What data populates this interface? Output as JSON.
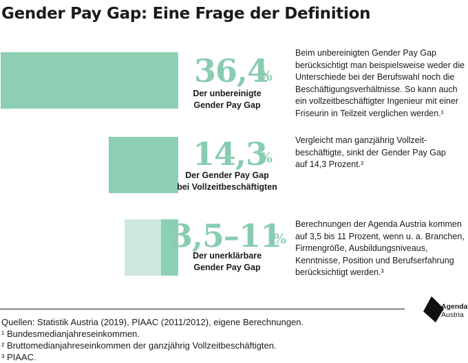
{
  "title": "Gender Pay Gap: Eine Frage der Definition",
  "colors": {
    "bar": "#8ccfb2",
    "bar_light": "#cde9dd",
    "figure": "#88cdb0",
    "text": "#1a1a1a"
  },
  "chart_data": {
    "type": "bar",
    "title": "Gender Pay Gap: Eine Frage der Definition",
    "unit": "%",
    "xlim": [
      0,
      36.4
    ],
    "rows": [
      {
        "value": 36.4,
        "display": "36,4",
        "unit": "%",
        "label_lines": [
          "Der unbereinigte",
          "Gender Pay Gap"
        ],
        "desc_lines": [
          "Beim unbereinigten Gender Pay Gap",
          "berücksichtigt man beispielsweise weder die",
          "Unterschiede bei der Berufswahl noch die",
          "Beschäftigungsverhältnisse. So kann auch",
          "ein vollzeitbeschäftigter Ingenieur mit einer",
          "Friseurin in Teilzeit verglichen werden.¹"
        ]
      },
      {
        "value": 14.3,
        "display": "14,3",
        "unit": "%",
        "label_lines": [
          "Der Gender Pay Gap",
          "bei Vollzeitbeschäftigten"
        ],
        "desc_lines": [
          "Vergleicht man ganzjährig Vollzeit-",
          "beschäftigte, sinkt der Gender Pay Gap",
          "auf 14,3 Prozent.²"
        ]
      },
      {
        "range": [
          3.5,
          11
        ],
        "display": "3,5–11",
        "unit": "%",
        "label_lines": [
          "Der unerklärbare",
          "Gender Pay Gap"
        ],
        "desc_lines": [
          "Berechnungen der Agenda Austria kommen",
          "auf 3,5 bis 11 Prozent, wenn u. a. Branchen,",
          "Firmengröße, Ausbildungsniveaus,",
          "Kenntnisse, Position und Berufserfahrung",
          "berücksichtigt werden.³"
        ]
      }
    ]
  },
  "sources": [
    "Quellen: Statistik Austria (2019), PIAAC (2011/2012), eigene Berechnungen.",
    "¹ Bundesmedianjahreseinkommen.",
    "² Bruttomedianjahreseinkommen der ganzjährig Vollzeitbeschäftigten.",
    "³ PIAAC."
  ],
  "logo": {
    "line1": "Agenda",
    "line2": "Austria"
  }
}
